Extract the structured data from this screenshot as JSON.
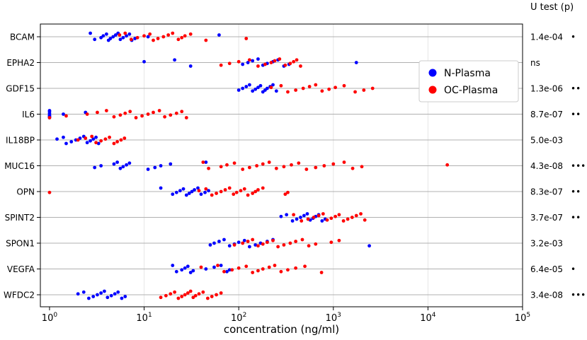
{
  "chart_data": {
    "type": "scatter",
    "x_scale": "log",
    "xlabel": "concentration (ng/ml)",
    "xlim": [
      0.8,
      100000
    ],
    "x_ticks": [
      {
        "value": 1,
        "base": "10",
        "exp": "0"
      },
      {
        "value": 10,
        "base": "10",
        "exp": "1"
      },
      {
        "value": 100,
        "base": "10",
        "exp": "2"
      },
      {
        "value": 1000,
        "base": "10",
        "exp": "3"
      },
      {
        "value": 10000,
        "base": "10",
        "exp": "4"
      },
      {
        "value": 100000,
        "base": "10",
        "exp": "5"
      }
    ],
    "grid": "horizontal lines per category, vertical lines at decades",
    "right_header": "U test (p)",
    "legend_position": "upper-right",
    "series": [
      {
        "name": "N-Plasma",
        "color": "#0000ff"
      },
      {
        "name": "OC-Plasma",
        "color": "#ff0000"
      }
    ],
    "categories": [
      {
        "label": "BCAM",
        "p": "1.4e-04",
        "stars": "•",
        "n": [
          2.7,
          3.0,
          3.5,
          3.7,
          4.0,
          4.2,
          4.4,
          4.7,
          5.0,
          5.3,
          5.6,
          6.0,
          6.5,
          7.0,
          7.4,
          8.0,
          11.0,
          62.0
        ],
        "oc": [
          5.5,
          6.3,
          7.3,
          8.5,
          10.0,
          11.5,
          12.5,
          14.0,
          16.0,
          18.0,
          20.0,
          23.0,
          25.0,
          27.0,
          31.0,
          45.0,
          120.0
        ]
      },
      {
        "label": "EPHA2",
        "p": "ns",
        "stars": "",
        "n": [
          10.0,
          21.0,
          31.0,
          110.0,
          125.0,
          140.0,
          160.0,
          180.0,
          200.0,
          230.0,
          260.0,
          300.0,
          340.0,
          1750.0
        ],
        "oc": [
          65.0,
          80.0,
          100.0,
          130.0,
          160.0,
          190.0,
          220.0,
          240.0,
          270.0,
          310.0,
          350.0,
          380.0,
          410.0,
          450.0
        ]
      },
      {
        "label": "GDF15",
        "p": "1.3e-06",
        "stars": "••",
        "n": [
          100.0,
          110.0,
          120.0,
          130.0,
          140.0,
          150.0,
          160.0,
          170.0,
          180.0,
          190.0,
          200.0,
          215.0,
          230.0,
          250.0
        ],
        "oc": [
          220.0,
          280.0,
          330.0,
          400.0,
          480.0,
          560.0,
          650.0,
          760.0,
          900.0,
          1050.0,
          1300.0,
          1700.0,
          2100.0,
          2600.0
        ]
      },
      {
        "label": "IL6",
        "p": "8.7e-07",
        "stars": "••",
        "n": [
          1.0,
          1.0,
          1.0,
          1.0,
          1.0,
          1.0,
          1.0,
          1.4,
          2.4
        ],
        "oc": [
          1.0,
          1.5,
          2.5,
          3.2,
          4.0,
          4.8,
          5.6,
          6.3,
          7.1,
          8.2,
          9.5,
          11.0,
          12.5,
          14.5,
          16.5,
          19.0,
          22.0,
          25.0,
          28.0
        ]
      },
      {
        "label": "IL18BP",
        "p": "5.0e-03",
        "stars": "",
        "n": [
          1.2,
          1.4,
          1.5,
          1.7,
          1.9,
          2.1,
          2.3,
          2.5,
          2.7,
          2.9,
          3.1,
          3.3
        ],
        "oc": [
          2.0,
          2.4,
          2.8,
          3.1,
          3.5,
          3.9,
          4.3,
          4.8,
          5.2,
          5.7,
          6.2
        ]
      },
      {
        "label": "MUC16",
        "p": "4.3e-08",
        "stars": "•••",
        "n": [
          3.0,
          3.5,
          4.8,
          5.2,
          5.6,
          6.0,
          6.5,
          7.0,
          11.0,
          13.0,
          15.0,
          19.0,
          45.0
        ],
        "oc": [
          42.0,
          48.0,
          65.0,
          75.0,
          90.0,
          110.0,
          130.0,
          155.0,
          180.0,
          210.0,
          250.0,
          300.0,
          360.0,
          430.0,
          520.0,
          650.0,
          800.0,
          1000.0,
          1300.0,
          1600.0,
          2000.0,
          16000.0
        ]
      },
      {
        "label": "OPN",
        "p": "8.3e-07",
        "stars": "••",
        "n": [
          15.0,
          20.0,
          22.0,
          24.0,
          26.0,
          28.0,
          30.0,
          32.0,
          34.0,
          37.0,
          40.0,
          44.0,
          48.0
        ],
        "oc": [
          1.0,
          38.0,
          45.0,
          52.0,
          58.0,
          65.0,
          72.0,
          80.0,
          88.0,
          95.0,
          105.0,
          115.0,
          125.0,
          140.0,
          150.0,
          160.0,
          180.0,
          310.0,
          330.0
        ]
      },
      {
        "label": "SPINT2",
        "p": "3.7e-07",
        "stars": "••",
        "n": [
          280.0,
          320.0,
          370.0,
          410.0,
          450.0,
          490.0,
          530.0,
          570.0,
          610.0,
          650.0,
          700.0,
          760.0,
          820.0
        ],
        "oc": [
          380.0,
          460.0,
          540.0,
          620.0,
          700.0,
          780.0,
          860.0,
          950.0,
          1050.0,
          1150.0,
          1280.0,
          1420.0,
          1580.0,
          1750.0,
          1950.0,
          2150.0
        ]
      },
      {
        "label": "SPON1",
        "p": "3.2e-03",
        "stars": "",
        "n": [
          50.0,
          55.0,
          62.0,
          70.0,
          80.0,
          90.0,
          100.0,
          115.0,
          130.0,
          150.0,
          170.0,
          200.0,
          230.0,
          2400.0
        ],
        "oc": [
          90.0,
          110.0,
          125.0,
          140.0,
          160.0,
          180.0,
          200.0,
          230.0,
          260.0,
          300.0,
          350.0,
          400.0,
          470.0,
          550.0,
          650.0,
          950.0,
          1150.0
        ]
      },
      {
        "label": "VEGFA",
        "p": "6.4e-05",
        "stars": "•",
        "n": [
          20.0,
          22.0,
          25.0,
          27.0,
          29.0,
          31.0,
          33.0,
          45.0,
          55.0,
          65.0,
          75.0,
          80.0
        ],
        "oc": [
          40.0,
          60.0,
          70.0,
          85.0,
          100.0,
          120.0,
          140.0,
          160.0,
          180.0,
          210.0,
          240.0,
          280.0,
          330.0,
          400.0,
          500.0,
          750.0
        ]
      },
      {
        "label": "WFDC2",
        "p": "3.4e-08",
        "stars": "•••",
        "n": [
          2.0,
          2.3,
          2.6,
          2.9,
          3.2,
          3.5,
          3.8,
          4.1,
          4.5,
          4.9,
          5.3,
          5.8,
          6.3
        ],
        "oc": [
          15.0,
          17.0,
          19.0,
          21.0,
          23.0,
          25.0,
          27.0,
          29.0,
          31.0,
          33.0,
          35.0,
          38.0,
          42.0,
          47.0,
          52.0,
          58.0,
          65.0
        ]
      }
    ]
  }
}
